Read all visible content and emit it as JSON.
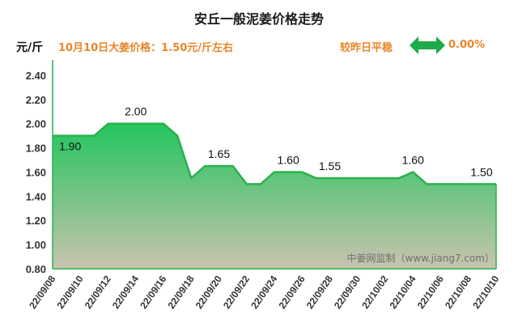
{
  "header": {
    "title": "安丘一般泥姜价格走势",
    "unit": "元/斤",
    "price_text": "10月10日大姜价格：1.50元/斤左右",
    "compare_text": "较昨日平稳",
    "change_pct": "0.00%"
  },
  "colors": {
    "accent": "#e8862a",
    "line": "#2bb14d",
    "fill_top": "#22c55e",
    "fill_bottom": "#c8c4ae",
    "arrow": "#1faa4a"
  },
  "chart_data": {
    "type": "area",
    "title": "安丘一般泥姜价格走势",
    "ylabel": "元/斤",
    "ylim": [
      0.8,
      2.5
    ],
    "yticks": [
      "2.40",
      "2.20",
      "2.00",
      "1.80",
      "1.60",
      "1.40",
      "1.20",
      "1.00",
      "0.80"
    ],
    "x_tick_labels": [
      "22/09/08",
      "22/09/10",
      "22/09/12",
      "22/09/14",
      "22/09/16",
      "22/09/18",
      "22/09/20",
      "22/09/22",
      "22/09/24",
      "22/09/26",
      "22/09/28",
      "22/09/30",
      "22/10/02",
      "22/10/04",
      "22/10/06",
      "22/10/08",
      "22/10/10"
    ],
    "x": [
      "22/09/08",
      "22/09/09",
      "22/09/10",
      "22/09/11",
      "22/09/12",
      "22/09/13",
      "22/09/14",
      "22/09/15",
      "22/09/16",
      "22/09/17",
      "22/09/18",
      "22/09/19",
      "22/09/20",
      "22/09/21",
      "22/09/22",
      "22/09/23",
      "22/09/24",
      "22/09/25",
      "22/09/26",
      "22/09/27",
      "22/09/28",
      "22/09/29",
      "22/09/30",
      "22/10/01",
      "22/10/02",
      "22/10/03",
      "22/10/04",
      "22/10/05",
      "22/10/06",
      "22/10/07",
      "22/10/08",
      "22/10/09",
      "22/10/10"
    ],
    "values": [
      1.9,
      1.9,
      1.9,
      1.9,
      2.0,
      2.0,
      2.0,
      2.0,
      2.0,
      1.9,
      1.55,
      1.65,
      1.65,
      1.65,
      1.5,
      1.5,
      1.6,
      1.6,
      1.6,
      1.55,
      1.55,
      1.55,
      1.55,
      1.55,
      1.55,
      1.55,
      1.6,
      1.5,
      1.5,
      1.5,
      1.5,
      1.5,
      1.5
    ],
    "data_labels": [
      {
        "x": "22/09/08",
        "text": "1.90"
      },
      {
        "x": "22/09/14",
        "text": "2.00"
      },
      {
        "x": "22/09/20",
        "text": "1.65"
      },
      {
        "x": "22/09/25",
        "text": "1.60"
      },
      {
        "x": "22/09/28",
        "text": "1.55"
      },
      {
        "x": "22/10/04",
        "text": "1.60"
      },
      {
        "x": "22/10/10",
        "text": "1.50"
      }
    ],
    "watermark": "中姜网监制（www.jiang7.com）",
    "grid": false,
    "legend": "none"
  }
}
